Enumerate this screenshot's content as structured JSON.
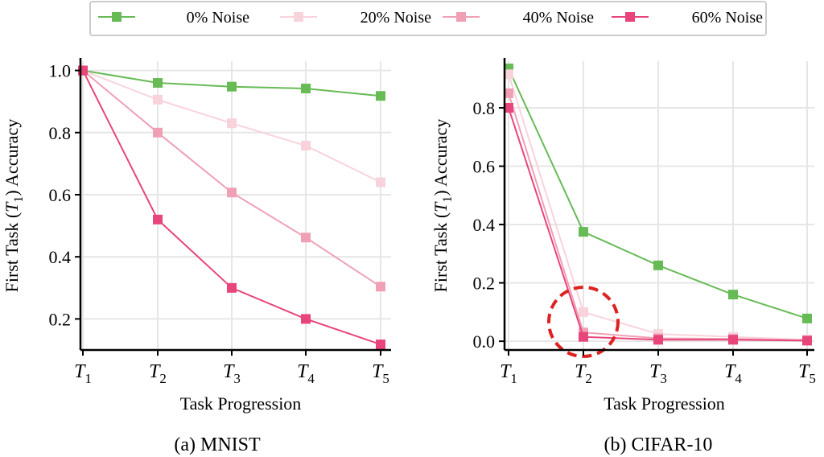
{
  "legend": {
    "items": [
      {
        "label": "0% Noise",
        "color": "#66bb55"
      },
      {
        "label": "20% Noise",
        "color": "#f9d3dc"
      },
      {
        "label": "40% Noise",
        "color": "#f0a0b5"
      },
      {
        "label": "60% Noise",
        "color": "#e8457a"
      }
    ]
  },
  "chart_data": [
    {
      "type": "line",
      "caption": "(a) MNIST",
      "xlabel": "Task Progression",
      "ylabel": "First Task (T1) Accuracy",
      "categories": [
        "T1",
        "T2",
        "T3",
        "T4",
        "T5"
      ],
      "ylim": [
        0.1,
        1.03
      ],
      "yticks": [
        0.2,
        0.4,
        0.6,
        0.8,
        1.0
      ],
      "ytick_labels": [
        "0.2",
        "0.4",
        "0.6",
        "0.8",
        "1.0"
      ],
      "grid": true,
      "series": [
        {
          "name": "0% Noise",
          "values": [
            1.0,
            0.96,
            0.948,
            0.942,
            0.918
          ]
        },
        {
          "name": "20% Noise",
          "values": [
            1.0,
            0.906,
            0.83,
            0.758,
            0.64
          ]
        },
        {
          "name": "40% Noise",
          "values": [
            1.0,
            0.8,
            0.607,
            0.462,
            0.304
          ]
        },
        {
          "name": "60% Noise",
          "values": [
            1.0,
            0.52,
            0.3,
            0.2,
            0.118
          ]
        }
      ]
    },
    {
      "type": "line",
      "caption": "(b) CIFAR-10",
      "xlabel": "Task Progression",
      "ylabel": "First Task (T1) Accuracy",
      "categories": [
        "T1",
        "T2",
        "T3",
        "T4",
        "T5"
      ],
      "ylim": [
        -0.03,
        0.96
      ],
      "yticks": [
        0.0,
        0.2,
        0.4,
        0.6,
        0.8
      ],
      "ytick_labels": [
        "0.0",
        "0.2",
        "0.4",
        "0.6",
        "0.8"
      ],
      "grid": true,
      "annotation": "dashed red circle around T2 low-accuracy points",
      "series": [
        {
          "name": "0% Noise",
          "values": [
            0.935,
            0.375,
            0.26,
            0.16,
            0.078
          ]
        },
        {
          "name": "20% Noise",
          "values": [
            0.915,
            0.1,
            0.025,
            0.015,
            0.005
          ]
        },
        {
          "name": "40% Noise",
          "values": [
            0.85,
            0.03,
            0.01,
            0.008,
            0.003
          ]
        },
        {
          "name": "60% Noise",
          "values": [
            0.8,
            0.015,
            0.005,
            0.005,
            0.002
          ]
        }
      ]
    }
  ]
}
